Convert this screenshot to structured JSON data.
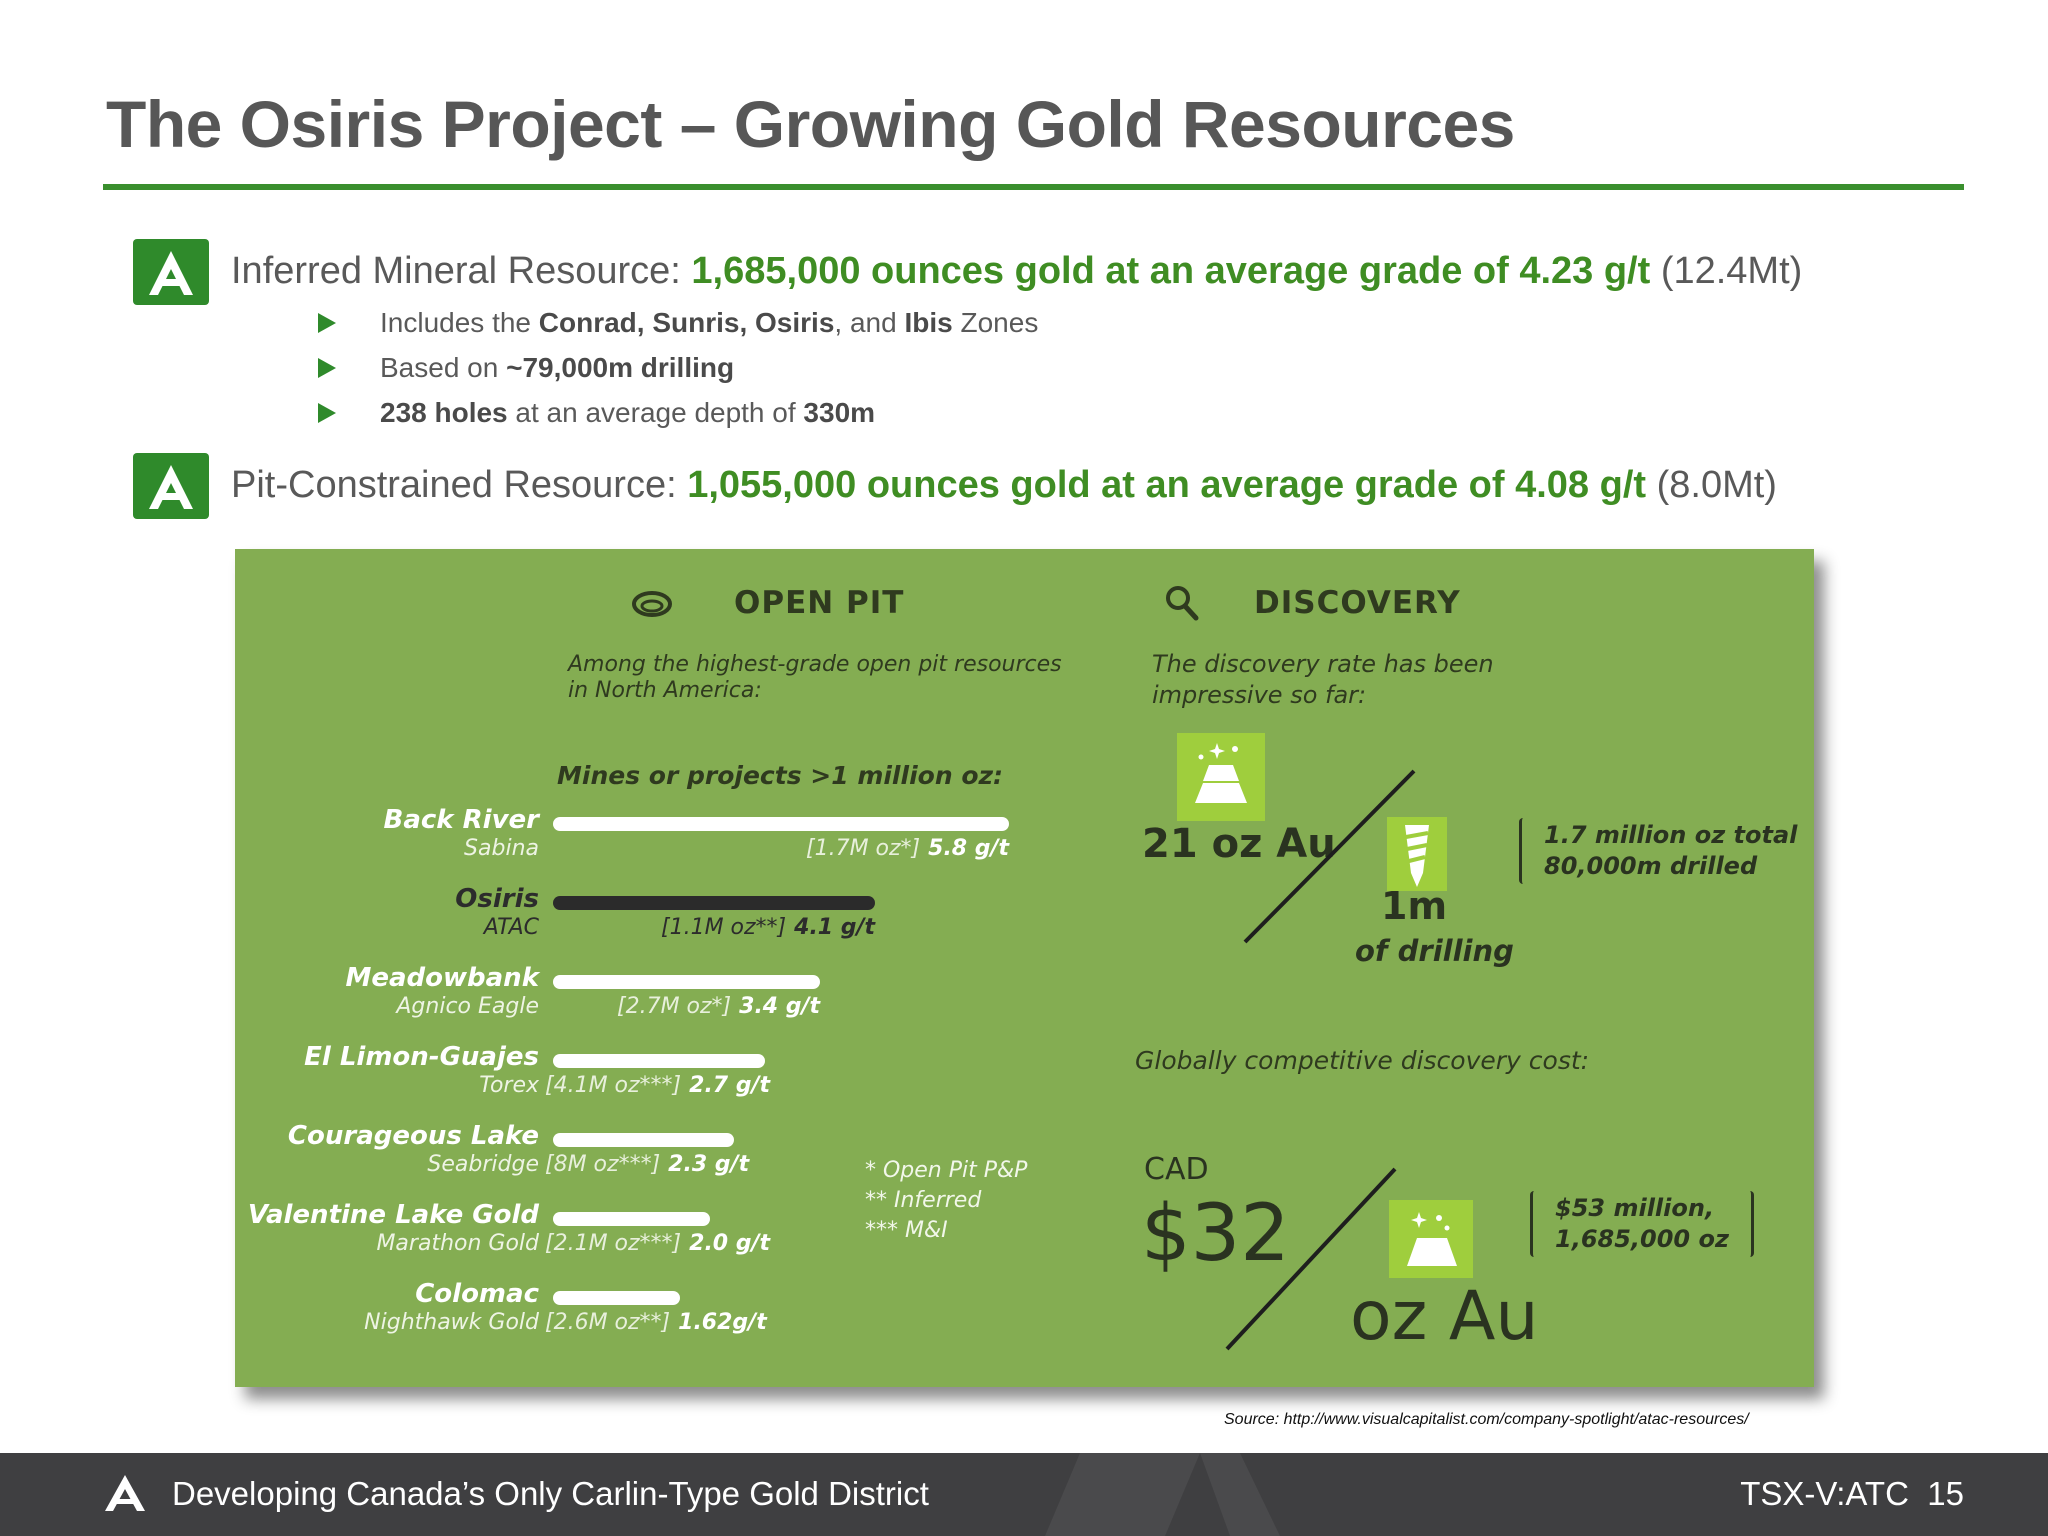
{
  "slide": {
    "title": "The Osiris Project – Growing Gold Resources",
    "inferred": {
      "label": "Inferred Mineral Resource: ",
      "highlight": "1,685,000 ounces gold at an average grade of 4.23 g/t",
      "suffix": " (12.4Mt)",
      "bullets": [
        {
          "pre": "Includes the ",
          "b1": "Conrad, Sunris, Osiris",
          "mid": ", and ",
          "b2": "Ibis",
          "post": " Zones"
        },
        {
          "pre": "Based on ",
          "b1": "~79,000m drilling"
        },
        {
          "b1": "238 holes",
          "mid": " at an average depth of ",
          "b2": "330m"
        }
      ]
    },
    "pit": {
      "label": "Pit-Constrained Resource: ",
      "highlight": "1,055,000 ounces gold at an average grade of 4.08 g/t",
      "suffix": " (8.0Mt)"
    }
  },
  "infographic": {
    "open_pit": {
      "heading": "OPEN PIT",
      "icon": "open-pit-icon",
      "intro": "Among the highest-grade open pit resources in North America:",
      "subheading": "Mines or projects >1 million oz:",
      "mines": [
        {
          "name": "Back River",
          "company": "Sabina",
          "resource": "[1.7M oz*]",
          "grade": "5.8 g/t"
        },
        {
          "name": "Osiris",
          "company": "ATAC",
          "resource": "[1.1M oz**]",
          "grade": "4.1 g/t"
        },
        {
          "name": "Meadowbank",
          "company": "Agnico Eagle",
          "resource": "[2.7M oz*]",
          "grade": "3.4 g/t"
        },
        {
          "name": "El Limon-Guajes",
          "company": "Torex",
          "resource": "[4.1M oz***]",
          "grade": "2.7 g/t"
        },
        {
          "name": "Courageous Lake",
          "company": "Seabridge",
          "resource": "[8M oz***]",
          "grade": "2.3 g/t"
        },
        {
          "name": "Valentine Lake Gold",
          "company": "Marathon Gold",
          "resource": "[2.1M oz***]",
          "grade": "2.0 g/t"
        },
        {
          "name": "Colomac",
          "company": "Nighthawk Gold",
          "resource": "[2.6M oz**]",
          "grade": "1.62g/t"
        }
      ],
      "notes": [
        "* Open Pit P&P",
        "** Inferred",
        "*** M&I"
      ]
    },
    "discovery": {
      "heading": "DISCOVERY",
      "icon": "magnifier-icon",
      "intro": "The discovery rate has been impressive so far:",
      "rate_top": "21 oz Au",
      "rate_bottom_value": "1m",
      "rate_bottom_label": "of drilling",
      "rate_note_1": "1.7 million oz total",
      "rate_note_2": "80,000m drilled",
      "cost_heading": "Globally competitive discovery cost:",
      "currency": "CAD",
      "cost_value": "$32",
      "cost_unit": "oz Au",
      "cost_note_1": "$53 million,",
      "cost_note_2": "1,685,000 oz"
    }
  },
  "chart_data": {
    "type": "bar",
    "title": "Mines or projects >1 million oz:",
    "ylabel": "",
    "categories": [
      "Back River",
      "Osiris",
      "Meadowbank",
      "El Limon-Guajes",
      "Courageous Lake",
      "Valentine Lake Gold",
      "Colomac"
    ],
    "series": [
      {
        "values": [
          5.8,
          4.1,
          3.4,
          2.7,
          2.3,
          2.0,
          1.62
        ]
      }
    ],
    "highlight_category": "Osiris",
    "colors": {
      "bar": "#ffffff",
      "highlight": "#2b2b2b"
    }
  },
  "source": "Source: http://www.visualcapitalist.com/company-spotlight/atac-resources/",
  "footer": {
    "text": "Developing Canada’s Only Carlin-Type Gold District",
    "ticker": "TSX-V:ATC",
    "page": "15"
  },
  "colors": {
    "accent_green": "#3f8d23",
    "infographic_bg": "#84ad52",
    "footer_bg": "#3f3f41"
  }
}
